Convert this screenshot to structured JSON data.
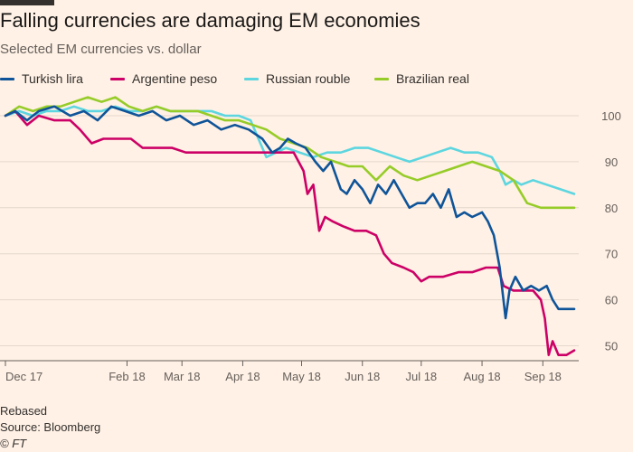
{
  "header": {
    "title": "Falling currencies are damaging EM economies",
    "subtitle": "Selected EM currencies vs. dollar"
  },
  "footer": {
    "note": "Rebased",
    "source": "Source: Bloomberg",
    "copyright": "© FT"
  },
  "colors": {
    "background": "#fff1e5",
    "gridline": "#e4d8cc",
    "axis": "#66605c"
  },
  "chart_data": {
    "type": "line",
    "title": "Falling currencies are damaging EM economies",
    "subtitle": "Selected EM currencies vs. dollar",
    "xlabel": "",
    "ylabel": "",
    "x_range": [
      "2017-12-01",
      "2018-09-17"
    ],
    "ylim": [
      45,
      105
    ],
    "y_ticks": [
      50,
      60,
      70,
      80,
      90,
      100
    ],
    "x_ticks": [
      {
        "date": "2017-12-01",
        "label": "Dec 17"
      },
      {
        "date": "2018-02-01",
        "label": "Feb 18"
      },
      {
        "date": "2018-03-01",
        "label": "Mar 18"
      },
      {
        "date": "2018-04-01",
        "label": "Apr 18"
      },
      {
        "date": "2018-05-01",
        "label": "May 18"
      },
      {
        "date": "2018-06-01",
        "label": "Jun 18"
      },
      {
        "date": "2018-07-01",
        "label": "Jul 18"
      },
      {
        "date": "2018-08-01",
        "label": "Aug 18"
      },
      {
        "date": "2018-09-01",
        "label": "Sep 18"
      }
    ],
    "grid": "horizontal",
    "y_axis_side": "right",
    "legend_position": "top",
    "series": [
      {
        "name": "Turkish lira",
        "color": "#0f5499",
        "points": [
          [
            "2017-12-01",
            100
          ],
          [
            "2017-12-06",
            101
          ],
          [
            "2017-12-12",
            99
          ],
          [
            "2017-12-18",
            101
          ],
          [
            "2017-12-26",
            102
          ],
          [
            "2018-01-03",
            100
          ],
          [
            "2018-01-10",
            101
          ],
          [
            "2018-01-17",
            99
          ],
          [
            "2018-01-24",
            102
          ],
          [
            "2018-01-31",
            101
          ],
          [
            "2018-02-07",
            100
          ],
          [
            "2018-02-14",
            101
          ],
          [
            "2018-02-21",
            99
          ],
          [
            "2018-02-28",
            100
          ],
          [
            "2018-03-07",
            98
          ],
          [
            "2018-03-14",
            99
          ],
          [
            "2018-03-21",
            97
          ],
          [
            "2018-03-28",
            98
          ],
          [
            "2018-04-04",
            97
          ],
          [
            "2018-04-11",
            95
          ],
          [
            "2018-04-16",
            92
          ],
          [
            "2018-04-20",
            93
          ],
          [
            "2018-04-24",
            95
          ],
          [
            "2018-04-28",
            94
          ],
          [
            "2018-05-03",
            93
          ],
          [
            "2018-05-08",
            90
          ],
          [
            "2018-05-12",
            88
          ],
          [
            "2018-05-16",
            90
          ],
          [
            "2018-05-21",
            84
          ],
          [
            "2018-05-24",
            83
          ],
          [
            "2018-05-28",
            86
          ],
          [
            "2018-06-01",
            84
          ],
          [
            "2018-06-05",
            81
          ],
          [
            "2018-06-09",
            85
          ],
          [
            "2018-06-13",
            83
          ],
          [
            "2018-06-17",
            86
          ],
          [
            "2018-06-21",
            83
          ],
          [
            "2018-06-25",
            80
          ],
          [
            "2018-06-29",
            81
          ],
          [
            "2018-07-03",
            81
          ],
          [
            "2018-07-07",
            83
          ],
          [
            "2018-07-11",
            80
          ],
          [
            "2018-07-15",
            84
          ],
          [
            "2018-07-19",
            78
          ],
          [
            "2018-07-23",
            79
          ],
          [
            "2018-07-27",
            78
          ],
          [
            "2018-08-01",
            79
          ],
          [
            "2018-08-04",
            77
          ],
          [
            "2018-08-07",
            74
          ],
          [
            "2018-08-10",
            67
          ],
          [
            "2018-08-13",
            56
          ],
          [
            "2018-08-15",
            62
          ],
          [
            "2018-08-18",
            65
          ],
          [
            "2018-08-22",
            62
          ],
          [
            "2018-08-26",
            63
          ],
          [
            "2018-08-30",
            62
          ],
          [
            "2018-09-03",
            63
          ],
          [
            "2018-09-06",
            60
          ],
          [
            "2018-09-09",
            58
          ],
          [
            "2018-09-12",
            58
          ],
          [
            "2018-09-17",
            58
          ]
        ]
      },
      {
        "name": "Argentine peso",
        "color": "#cc0066",
        "points": [
          [
            "2017-12-01",
            100
          ],
          [
            "2017-12-06",
            101
          ],
          [
            "2017-12-12",
            98
          ],
          [
            "2017-12-18",
            100
          ],
          [
            "2017-12-26",
            99
          ],
          [
            "2018-01-03",
            99
          ],
          [
            "2018-01-08",
            97
          ],
          [
            "2018-01-14",
            94
          ],
          [
            "2018-01-20",
            95
          ],
          [
            "2018-01-27",
            95
          ],
          [
            "2018-02-03",
            95
          ],
          [
            "2018-02-09",
            93
          ],
          [
            "2018-02-17",
            93
          ],
          [
            "2018-02-24",
            93
          ],
          [
            "2018-03-03",
            92
          ],
          [
            "2018-03-12",
            92
          ],
          [
            "2018-03-21",
            92
          ],
          [
            "2018-03-30",
            92
          ],
          [
            "2018-04-08",
            92
          ],
          [
            "2018-04-18",
            92
          ],
          [
            "2018-04-27",
            92
          ],
          [
            "2018-05-02",
            88
          ],
          [
            "2018-05-04",
            83
          ],
          [
            "2018-05-07",
            85
          ],
          [
            "2018-05-10",
            75
          ],
          [
            "2018-05-13",
            78
          ],
          [
            "2018-05-17",
            77
          ],
          [
            "2018-05-22",
            76
          ],
          [
            "2018-05-28",
            75
          ],
          [
            "2018-06-03",
            75
          ],
          [
            "2018-06-08",
            74
          ],
          [
            "2018-06-12",
            70
          ],
          [
            "2018-06-16",
            68
          ],
          [
            "2018-06-22",
            67
          ],
          [
            "2018-06-27",
            66
          ],
          [
            "2018-07-01",
            64
          ],
          [
            "2018-07-05",
            65
          ],
          [
            "2018-07-12",
            65
          ],
          [
            "2018-07-20",
            66
          ],
          [
            "2018-07-27",
            66
          ],
          [
            "2018-08-03",
            67
          ],
          [
            "2018-08-09",
            67
          ],
          [
            "2018-08-12",
            63
          ],
          [
            "2018-08-17",
            62
          ],
          [
            "2018-08-22",
            62
          ],
          [
            "2018-08-27",
            62
          ],
          [
            "2018-08-31",
            60
          ],
          [
            "2018-09-02",
            56
          ],
          [
            "2018-09-04",
            48
          ],
          [
            "2018-09-06",
            51
          ],
          [
            "2018-09-09",
            48
          ],
          [
            "2018-09-13",
            48
          ],
          [
            "2018-09-17",
            49
          ]
        ]
      },
      {
        "name": "Russian rouble",
        "color": "#5dd6e0",
        "points": [
          [
            "2017-12-01",
            100
          ],
          [
            "2017-12-08",
            101
          ],
          [
            "2017-12-15",
            100
          ],
          [
            "2017-12-22",
            101
          ],
          [
            "2017-12-29",
            101
          ],
          [
            "2018-01-05",
            102
          ],
          [
            "2018-01-12",
            101
          ],
          [
            "2018-01-19",
            101
          ],
          [
            "2018-01-26",
            102
          ],
          [
            "2018-02-02",
            101
          ],
          [
            "2018-02-09",
            101
          ],
          [
            "2018-02-16",
            102
          ],
          [
            "2018-02-23",
            101
          ],
          [
            "2018-03-02",
            101
          ],
          [
            "2018-03-09",
            101
          ],
          [
            "2018-03-16",
            101
          ],
          [
            "2018-03-23",
            100
          ],
          [
            "2018-03-30",
            100
          ],
          [
            "2018-04-05",
            99
          ],
          [
            "2018-04-09",
            95
          ],
          [
            "2018-04-13",
            91
          ],
          [
            "2018-04-18",
            92
          ],
          [
            "2018-04-23",
            93
          ],
          [
            "2018-04-30",
            92
          ],
          [
            "2018-05-07",
            91
          ],
          [
            "2018-05-14",
            92
          ],
          [
            "2018-05-21",
            92
          ],
          [
            "2018-05-28",
            93
          ],
          [
            "2018-06-04",
            93
          ],
          [
            "2018-06-11",
            92
          ],
          [
            "2018-06-18",
            91
          ],
          [
            "2018-06-25",
            90
          ],
          [
            "2018-07-02",
            91
          ],
          [
            "2018-07-09",
            92
          ],
          [
            "2018-07-16",
            93
          ],
          [
            "2018-07-23",
            92
          ],
          [
            "2018-07-30",
            92
          ],
          [
            "2018-08-06",
            91
          ],
          [
            "2018-08-10",
            88
          ],
          [
            "2018-08-13",
            85
          ],
          [
            "2018-08-17",
            86
          ],
          [
            "2018-08-21",
            85
          ],
          [
            "2018-08-27",
            86
          ],
          [
            "2018-09-03",
            85
          ],
          [
            "2018-09-10",
            84
          ],
          [
            "2018-09-17",
            83
          ]
        ]
      },
      {
        "name": "Brazilian real",
        "color": "#96cc28",
        "points": [
          [
            "2017-12-01",
            100
          ],
          [
            "2017-12-08",
            102
          ],
          [
            "2017-12-15",
            101
          ],
          [
            "2017-12-22",
            102
          ],
          [
            "2017-12-29",
            102
          ],
          [
            "2018-01-05",
            103
          ],
          [
            "2018-01-12",
            104
          ],
          [
            "2018-01-19",
            103
          ],
          [
            "2018-01-26",
            104
          ],
          [
            "2018-02-02",
            102
          ],
          [
            "2018-02-09",
            101
          ],
          [
            "2018-02-16",
            102
          ],
          [
            "2018-02-23",
            101
          ],
          [
            "2018-03-02",
            101
          ],
          [
            "2018-03-09",
            101
          ],
          [
            "2018-03-16",
            100
          ],
          [
            "2018-03-23",
            99
          ],
          [
            "2018-03-30",
            99
          ],
          [
            "2018-04-06",
            98
          ],
          [
            "2018-04-13",
            97
          ],
          [
            "2018-04-20",
            95
          ],
          [
            "2018-04-27",
            94
          ],
          [
            "2018-05-04",
            93
          ],
          [
            "2018-05-11",
            91
          ],
          [
            "2018-05-18",
            90
          ],
          [
            "2018-05-25",
            89
          ],
          [
            "2018-06-01",
            89
          ],
          [
            "2018-06-08",
            86
          ],
          [
            "2018-06-15",
            89
          ],
          [
            "2018-06-22",
            87
          ],
          [
            "2018-06-29",
            86
          ],
          [
            "2018-07-06",
            87
          ],
          [
            "2018-07-13",
            88
          ],
          [
            "2018-07-20",
            89
          ],
          [
            "2018-07-27",
            90
          ],
          [
            "2018-08-03",
            89
          ],
          [
            "2018-08-10",
            88
          ],
          [
            "2018-08-17",
            86
          ],
          [
            "2018-08-24",
            81
          ],
          [
            "2018-08-31",
            80
          ],
          [
            "2018-09-07",
            80
          ],
          [
            "2018-09-17",
            80
          ]
        ]
      }
    ]
  }
}
